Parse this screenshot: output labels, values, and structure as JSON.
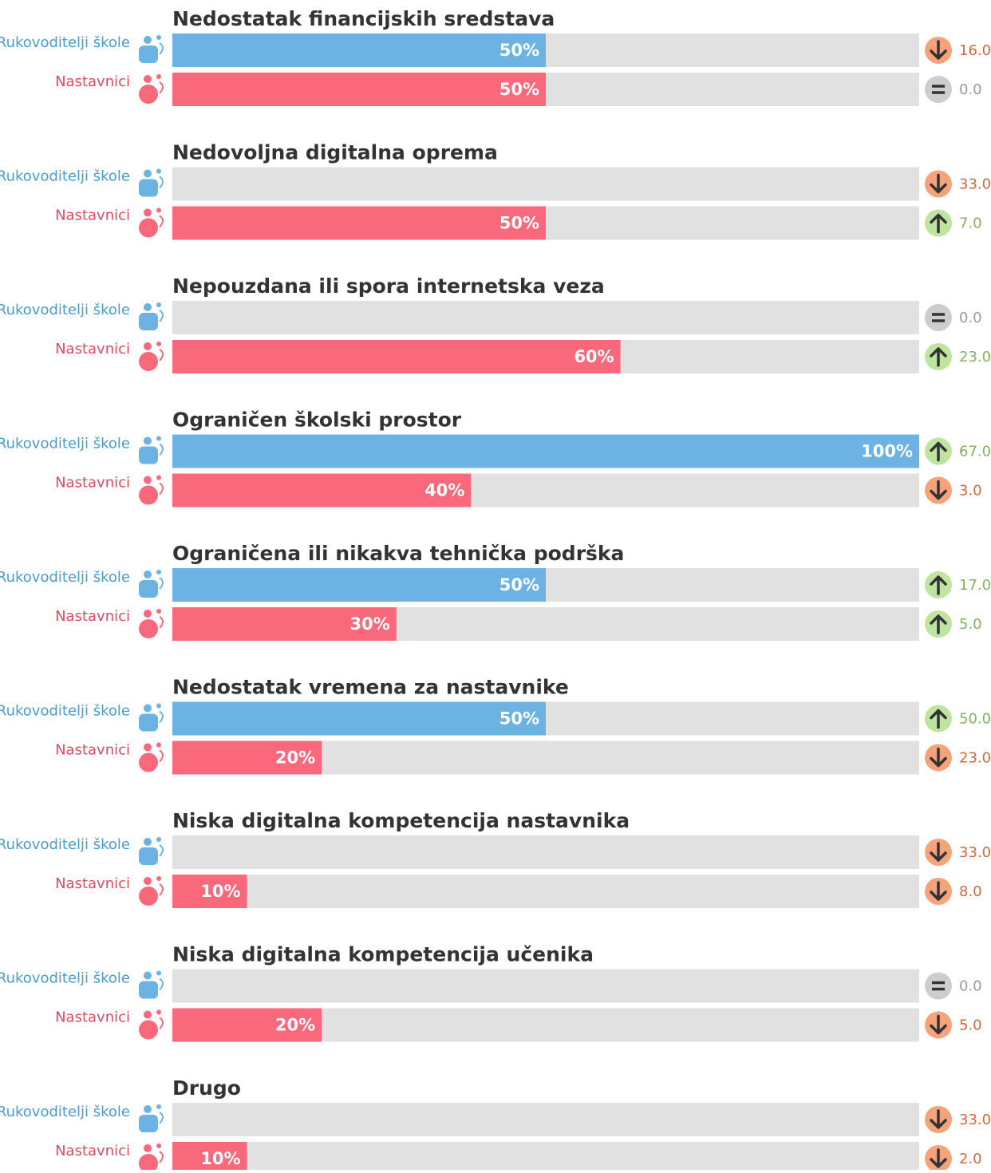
{
  "chart_data": {
    "type": "bar",
    "orientation": "horizontal",
    "xlim": [
      0,
      100
    ],
    "categories": [
      "Nedostatak financijskih sredstava",
      "Nedovoljna digitalna oprema",
      "Nepouzdana ili spora internetska veza",
      "Ograničen školski prostor",
      "Ograničena ili nikakva tehnička podrška",
      "Nedostatak vremena za nastavnike",
      "Niska digitalna kompetencija nastavnika",
      "Niska digitalna kompetencija učenika",
      "Drugo"
    ],
    "series": [
      {
        "name": "Rukovoditelji škole",
        "color": "#6cb3e3",
        "label_color": "#4a9ccc",
        "values": [
          50,
          0,
          0,
          100,
          50,
          50,
          0,
          0,
          0
        ],
        "changes": [
          16,
          33,
          0,
          67,
          17,
          50,
          33,
          0,
          33
        ],
        "change_labels": [
          "16.0",
          "33.0",
          "0.0",
          "67.0",
          "17.0",
          "50.0",
          "33.0",
          "0.0",
          "33.0"
        ],
        "change_directions": [
          "down",
          "down",
          "equal",
          "up",
          "up",
          "up",
          "down",
          "equal",
          "down"
        ]
      },
      {
        "name": "Nastavnici",
        "color": "#f9687b",
        "label_color": "#e04a5e",
        "values": [
          50,
          50,
          60,
          40,
          30,
          20,
          10,
          20,
          10
        ],
        "changes": [
          0,
          7,
          23,
          3,
          5,
          23,
          8,
          5,
          2
        ],
        "change_labels": [
          "0.0",
          "7.0",
          "23.0",
          "3.0",
          "5.0",
          "23.0",
          "8.0",
          "5.0",
          "2.0"
        ],
        "change_directions": [
          "equal",
          "up",
          "up",
          "down",
          "up",
          "down",
          "down",
          "down",
          "down"
        ]
      }
    ]
  }
}
